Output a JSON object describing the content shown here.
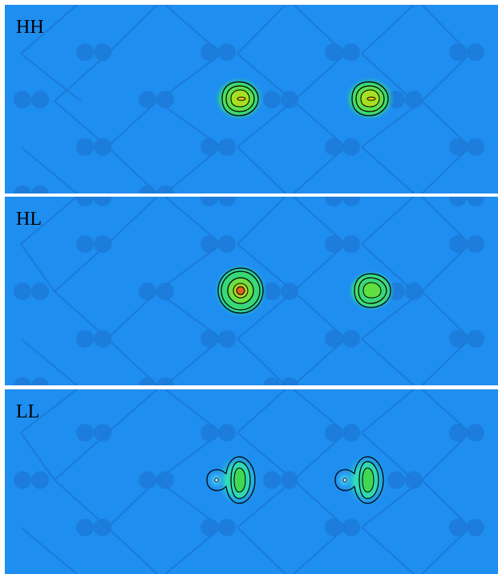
{
  "panels": [
    {
      "label": "HH"
    },
    {
      "label": "HL"
    },
    {
      "label": "LL"
    }
  ],
  "colors": {
    "background_blue": "#1e8ef0",
    "lattice": "#1f7ad8",
    "contour_line": "#000000",
    "separator": "#ffffff",
    "colormap": [
      "#1e8ef0",
      "#22d8e6",
      "#3fe07a",
      "#b8e11e",
      "#e0671e"
    ]
  }
}
